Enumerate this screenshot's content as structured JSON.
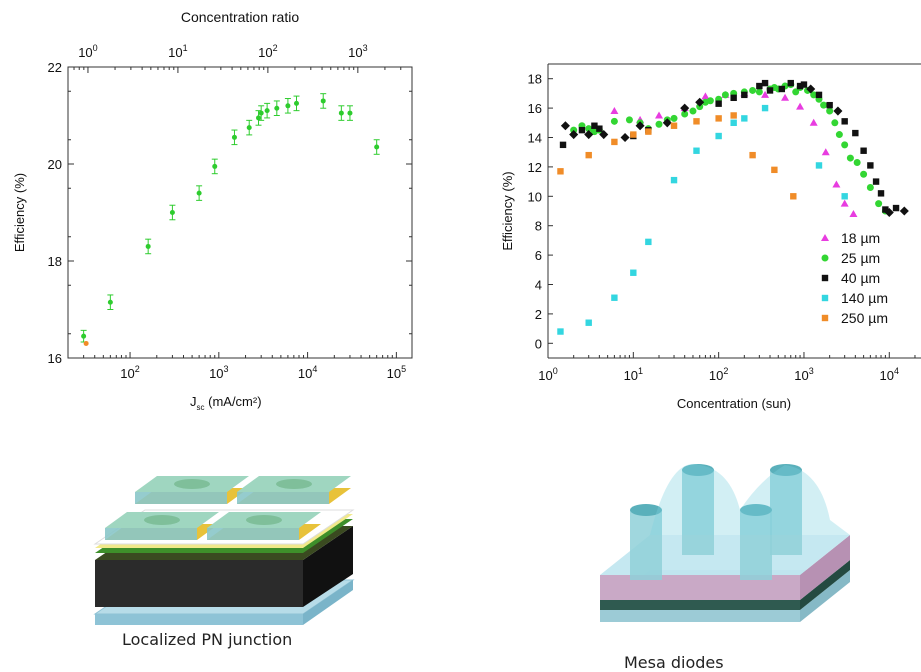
{
  "chart_data": [
    {
      "type": "scatter",
      "xlabel": "J",
      "xlabel_sub": "sc",
      "xlabel_unit": " (mA/cm²)",
      "ylabel": "Efficiency (%)",
      "top_axis_label": "Concentration ratio",
      "x_scale": "log",
      "xlim": [
        20,
        150000
      ],
      "ylim": [
        16,
        22
      ],
      "top_xlim": [
        0.6,
        4000
      ],
      "x_ticks": [
        {
          "v": 100,
          "base": "10",
          "exp": "2"
        },
        {
          "v": 1000,
          "base": "10",
          "exp": "3"
        },
        {
          "v": 10000,
          "base": "10",
          "exp": "4"
        },
        {
          "v": 100000,
          "base": "10",
          "exp": "5"
        }
      ],
      "y_ticks": [
        16,
        18,
        20,
        22
      ],
      "top_ticks": [
        {
          "v": 1,
          "base": "10",
          "exp": "0"
        },
        {
          "v": 10,
          "base": "10",
          "exp": "1"
        },
        {
          "v": 100,
          "base": "10",
          "exp": "2"
        },
        {
          "v": 1000,
          "base": "10",
          "exp": "3"
        }
      ],
      "series": [
        {
          "color": "#2ecc2e",
          "points": [
            {
              "x": 30,
              "y": 16.45,
              "err": 0.12
            },
            {
              "x": 60,
              "y": 17.15,
              "err": 0.15
            },
            {
              "x": 160,
              "y": 18.3,
              "err": 0.15
            },
            {
              "x": 300,
              "y": 19.0,
              "err": 0.15
            },
            {
              "x": 600,
              "y": 19.4,
              "err": 0.15
            },
            {
              "x": 900,
              "y": 19.95,
              "err": 0.15
            },
            {
              "x": 1500,
              "y": 20.55,
              "err": 0.15
            },
            {
              "x": 2200,
              "y": 20.75,
              "err": 0.15
            },
            {
              "x": 2800,
              "y": 20.95,
              "err": 0.15
            },
            {
              "x": 3000,
              "y": 21.05,
              "err": 0.15
            },
            {
              "x": 3500,
              "y": 21.1,
              "err": 0.15
            },
            {
              "x": 4500,
              "y": 21.15,
              "err": 0.15
            },
            {
              "x": 6000,
              "y": 21.2,
              "err": 0.15
            },
            {
              "x": 7500,
              "y": 21.25,
              "err": 0.15
            },
            {
              "x": 15000,
              "y": 21.3,
              "err": 0.15
            },
            {
              "x": 24000,
              "y": 21.05,
              "err": 0.15
            },
            {
              "x": 30000,
              "y": 21.05,
              "err": 0.15
            },
            {
              "x": 60000,
              "y": 20.35,
              "err": 0.15
            }
          ]
        },
        {
          "color": "#f08c28",
          "points": [
            {
              "x": 32,
              "y": 16.3
            }
          ]
        }
      ]
    },
    {
      "type": "scatter",
      "xlabel": "Concentration (sun)",
      "ylabel": "Efficiency (%)",
      "x_scale": "log",
      "xlim": [
        1,
        30000
      ],
      "ylim": [
        -1,
        19
      ],
      "x_ticks": [
        {
          "v": 1,
          "base": "10",
          "exp": "0"
        },
        {
          "v": 10,
          "base": "10",
          "exp": "1"
        },
        {
          "v": 100,
          "base": "10",
          "exp": "2"
        },
        {
          "v": 1000,
          "base": "10",
          "exp": "3"
        },
        {
          "v": 10000,
          "base": "10",
          "exp": "4"
        }
      ],
      "y_ticks": [
        0,
        2,
        4,
        6,
        8,
        10,
        12,
        14,
        16,
        18
      ],
      "legend": "bottom-right",
      "series": [
        {
          "name": "18 µm",
          "color": "#e83ce0",
          "marker": "triangle",
          "points": [
            [
              6,
              15.8
            ],
            [
              12,
              15.2
            ],
            [
              20,
              15.5
            ],
            [
              40,
              16.0
            ],
            [
              70,
              16.8
            ],
            [
              120,
              16.9
            ],
            [
              200,
              17.0
            ],
            [
              350,
              16.9
            ],
            [
              600,
              16.7
            ],
            [
              900,
              16.1
            ],
            [
              1300,
              15.0
            ],
            [
              1800,
              13.0
            ],
            [
              2400,
              10.8
            ],
            [
              3000,
              9.5
            ],
            [
              3800,
              8.8
            ]
          ]
        },
        {
          "name": "25 µm",
          "color": "#33d633",
          "marker": "circle",
          "points": [
            [
              2,
              14.5
            ],
            [
              2.5,
              14.8
            ],
            [
              3,
              14.6
            ],
            [
              3.5,
              14.4
            ],
            [
              4,
              14.5
            ],
            [
              6,
              15.1
            ],
            [
              9,
              15.2
            ],
            [
              12,
              15.0
            ],
            [
              15,
              14.6
            ],
            [
              20,
              14.9
            ],
            [
              25,
              15.2
            ],
            [
              30,
              15.3
            ],
            [
              40,
              15.6
            ],
            [
              50,
              15.8
            ],
            [
              60,
              16.1
            ],
            [
              70,
              16.4
            ],
            [
              80,
              16.5
            ],
            [
              100,
              16.6
            ],
            [
              120,
              16.9
            ],
            [
              150,
              17.0
            ],
            [
              200,
              17.1
            ],
            [
              250,
              17.2
            ],
            [
              300,
              17.1
            ],
            [
              400,
              17.3
            ],
            [
              450,
              17.4
            ],
            [
              500,
              17.3
            ],
            [
              600,
              17.5
            ],
            [
              700,
              17.6
            ],
            [
              800,
              17.1
            ],
            [
              900,
              17.4
            ],
            [
              1100,
              17.2
            ],
            [
              1300,
              16.9
            ],
            [
              1500,
              16.6
            ],
            [
              1700,
              16.2
            ],
            [
              2000,
              15.8
            ],
            [
              2300,
              15.0
            ],
            [
              2600,
              14.2
            ],
            [
              3000,
              13.5
            ],
            [
              3500,
              12.6
            ],
            [
              4200,
              12.3
            ],
            [
              5000,
              11.5
            ],
            [
              6000,
              10.6
            ],
            [
              7500,
              9.5
            ],
            [
              9000,
              9.0
            ]
          ]
        },
        {
          "name": "40 µm",
          "color": "#111111",
          "marker": "square",
          "points": [
            [
              1.5,
              13.5
            ],
            [
              1.6,
              14.8
            ],
            [
              2,
              14.2
            ],
            [
              2.5,
              14.5
            ],
            [
              3,
              14.2
            ],
            [
              3.5,
              14.8
            ],
            [
              4,
              14.6
            ],
            [
              4.5,
              14.2
            ],
            [
              8,
              14.0
            ],
            [
              10,
              14.1
            ],
            [
              12,
              14.8
            ],
            [
              15,
              14.5
            ],
            [
              25,
              15.0
            ],
            [
              40,
              16.0
            ],
            [
              60,
              16.4
            ],
            [
              100,
              16.3
            ],
            [
              150,
              16.7
            ],
            [
              200,
              16.9
            ],
            [
              300,
              17.5
            ],
            [
              350,
              17.7
            ],
            [
              400,
              17.2
            ],
            [
              550,
              17.3
            ],
            [
              700,
              17.7
            ],
            [
              900,
              17.5
            ],
            [
              1000,
              17.6
            ],
            [
              1200,
              17.3
            ],
            [
              1500,
              16.9
            ],
            [
              2000,
              16.2
            ],
            [
              2500,
              15.8
            ],
            [
              3000,
              15.1
            ],
            [
              4000,
              14.3
            ],
            [
              5000,
              13.1
            ],
            [
              6000,
              12.1
            ],
            [
              7000,
              11.0
            ],
            [
              8000,
              10.2
            ],
            [
              9000,
              9.1
            ],
            [
              10000,
              8.9
            ],
            [
              12000,
              9.2
            ],
            [
              15000,
              9.0
            ]
          ]
        },
        {
          "name": "140 µm",
          "color": "#33d6e0",
          "marker": "square",
          "points": [
            [
              1.4,
              0.8
            ],
            [
              3,
              1.4
            ],
            [
              6,
              3.1
            ],
            [
              10,
              4.8
            ],
            [
              15,
              6.9
            ],
            [
              30,
              11.1
            ],
            [
              55,
              13.1
            ],
            [
              100,
              14.1
            ],
            [
              150,
              15.0
            ],
            [
              200,
              15.3
            ],
            [
              350,
              16.0
            ],
            [
              1500,
              12.1
            ],
            [
              3000,
              10.0
            ]
          ]
        },
        {
          "name": "250 µm",
          "color": "#f08c28",
          "marker": "square",
          "points": [
            [
              1.4,
              11.7
            ],
            [
              3,
              12.8
            ],
            [
              6,
              13.7
            ],
            [
              10,
              14.2
            ],
            [
              15,
              14.4
            ],
            [
              30,
              14.8
            ],
            [
              55,
              15.1
            ],
            [
              100,
              15.3
            ],
            [
              150,
              15.5
            ],
            [
              250,
              12.8
            ],
            [
              450,
              11.8
            ],
            [
              750,
              10.0
            ]
          ]
        }
      ]
    }
  ],
  "captions": {
    "left": "Localized PN junction",
    "right": "Mesa diodes"
  }
}
